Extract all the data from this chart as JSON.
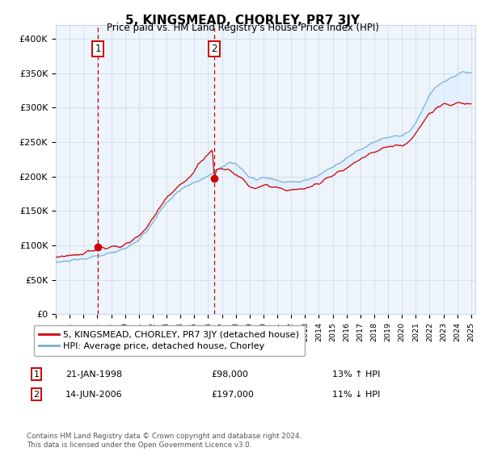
{
  "title": "5, KINGSMEAD, CHORLEY, PR7 3JY",
  "subtitle": "Price paid vs. HM Land Registry's House Price Index (HPI)",
  "ylim": [
    0,
    420000
  ],
  "yticks": [
    0,
    50000,
    100000,
    150000,
    200000,
    250000,
    300000,
    350000,
    400000
  ],
  "ytick_labels": [
    "£0",
    "£50K",
    "£100K",
    "£150K",
    "£200K",
    "£250K",
    "£300K",
    "£350K",
    "£400K"
  ],
  "sale1_date": 1998.05,
  "sale1_price": 98000,
  "sale1_label": "1",
  "sale1_text": "21-JAN-1998",
  "sale1_price_text": "£98,000",
  "sale1_hpi_text": "13% ↑ HPI",
  "sale2_date": 2006.46,
  "sale2_price": 197000,
  "sale2_label": "2",
  "sale2_text": "14-JUN-2006",
  "sale2_price_text": "£197,000",
  "sale2_hpi_text": "11% ↓ HPI",
  "legend_line1": "5, KINGSMEAD, CHORLEY, PR7 3JY (detached house)",
  "legend_line2": "HPI: Average price, detached house, Chorley",
  "footnote": "Contains HM Land Registry data © Crown copyright and database right 2024.\nThis data is licensed under the Open Government Licence v3.0.",
  "line_color_property": "#cc0000",
  "line_color_hpi": "#7ab0d4",
  "fill_color": "#ddeeff",
  "vline_color": "#cc0000",
  "plot_bg": "#eef4fb",
  "grid_color": "#c8d8e8"
}
